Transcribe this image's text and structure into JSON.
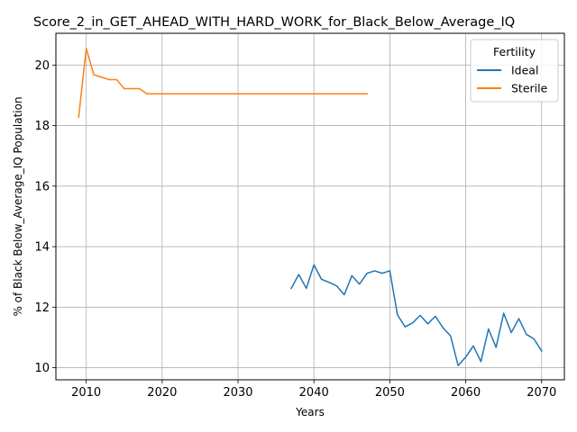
{
  "chart_data": {
    "type": "line",
    "title": "Score_2_in_GET_AHEAD_WITH_HARD_WORK_for_Black_Below_Average_IQ",
    "xlabel": "Years",
    "ylabel": "% of Black Below_Average_IQ Population",
    "xlim": [
      2006,
      2073
    ],
    "ylim": [
      9.6,
      21.05
    ],
    "xticks": [
      2010,
      2020,
      2030,
      2040,
      2050,
      2060,
      2070
    ],
    "yticks": [
      10,
      12,
      14,
      16,
      18,
      20
    ],
    "grid": true,
    "legend": {
      "title": "Fertility",
      "position": "top-right"
    },
    "series": [
      {
        "name": "Ideal",
        "color": "#1f77b4",
        "x": [
          2037,
          2038,
          2039,
          2040,
          2041,
          2042,
          2043,
          2044,
          2045,
          2046,
          2047,
          2048,
          2049,
          2050,
          2051,
          2052,
          2053,
          2054,
          2055,
          2056,
          2057,
          2058,
          2059,
          2060,
          2061,
          2062,
          2063,
          2064,
          2065,
          2066,
          2067,
          2068,
          2069,
          2070
        ],
        "values": [
          12.62,
          13.08,
          12.62,
          13.4,
          12.92,
          12.82,
          12.7,
          12.41,
          13.04,
          12.76,
          13.12,
          13.2,
          13.12,
          13.2,
          11.75,
          11.35,
          11.48,
          11.73,
          11.45,
          11.7,
          11.32,
          11.05,
          10.07,
          10.35,
          10.72,
          10.2,
          11.28,
          10.67,
          11.8,
          11.16,
          11.62,
          11.1,
          10.95,
          10.55
        ]
      },
      {
        "name": "Sterile",
        "color": "#ff7f0e",
        "x": [
          2009,
          2010,
          2011,
          2012,
          2013,
          2014,
          2015,
          2016,
          2017,
          2018,
          2019,
          2020,
          2021,
          2022,
          2023,
          2024,
          2025,
          2026,
          2027,
          2028,
          2029,
          2030,
          2031,
          2032,
          2033,
          2034,
          2035,
          2036,
          2037,
          2038,
          2039,
          2040,
          2041,
          2042,
          2043,
          2044,
          2045,
          2046,
          2047
        ],
        "values": [
          18.28,
          20.55,
          19.68,
          19.6,
          19.52,
          19.52,
          19.22,
          19.22,
          19.22,
          19.05,
          19.05,
          19.05,
          19.05,
          19.05,
          19.05,
          19.05,
          19.05,
          19.05,
          19.05,
          19.05,
          19.05,
          19.05,
          19.05,
          19.05,
          19.05,
          19.05,
          19.05,
          19.05,
          19.05,
          19.05,
          19.05,
          19.05,
          19.05,
          19.05,
          19.05,
          19.05,
          19.05,
          19.05,
          19.05
        ]
      }
    ]
  }
}
